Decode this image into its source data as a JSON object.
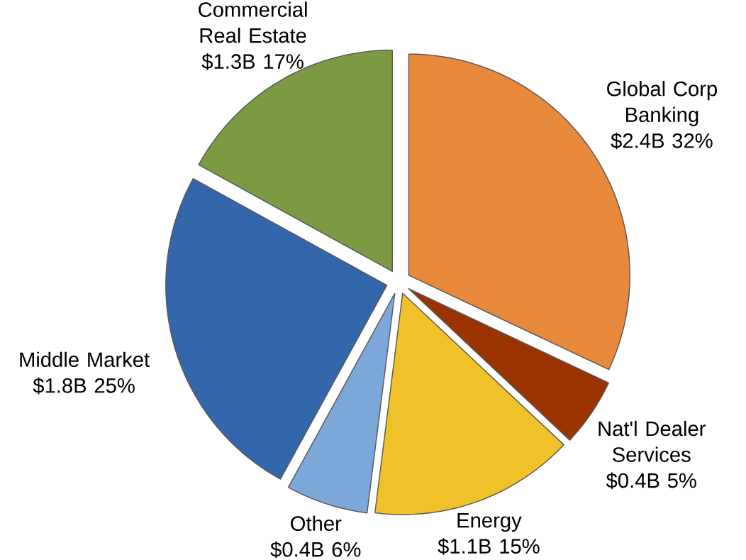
{
  "chart_data": {
    "type": "pie",
    "categories": [
      "Global Corp Banking",
      "Nat'l Dealer Services",
      "Energy",
      "Other",
      "Middle Market",
      "Commercial Real Estate"
    ],
    "values": [
      32,
      5,
      15,
      6,
      25,
      17
    ],
    "value_labels": [
      "$2.4B 32%",
      "$0.4B 5%",
      "$1.1B 15%",
      "$0.4B 6%",
      "$1.8B 25%",
      "$1.3B 17%"
    ],
    "colors": [
      "#e8883a",
      "#9b3300",
      "#eec228",
      "#7ba7d9",
      "#3366aa",
      "#7c9a42"
    ]
  }
}
